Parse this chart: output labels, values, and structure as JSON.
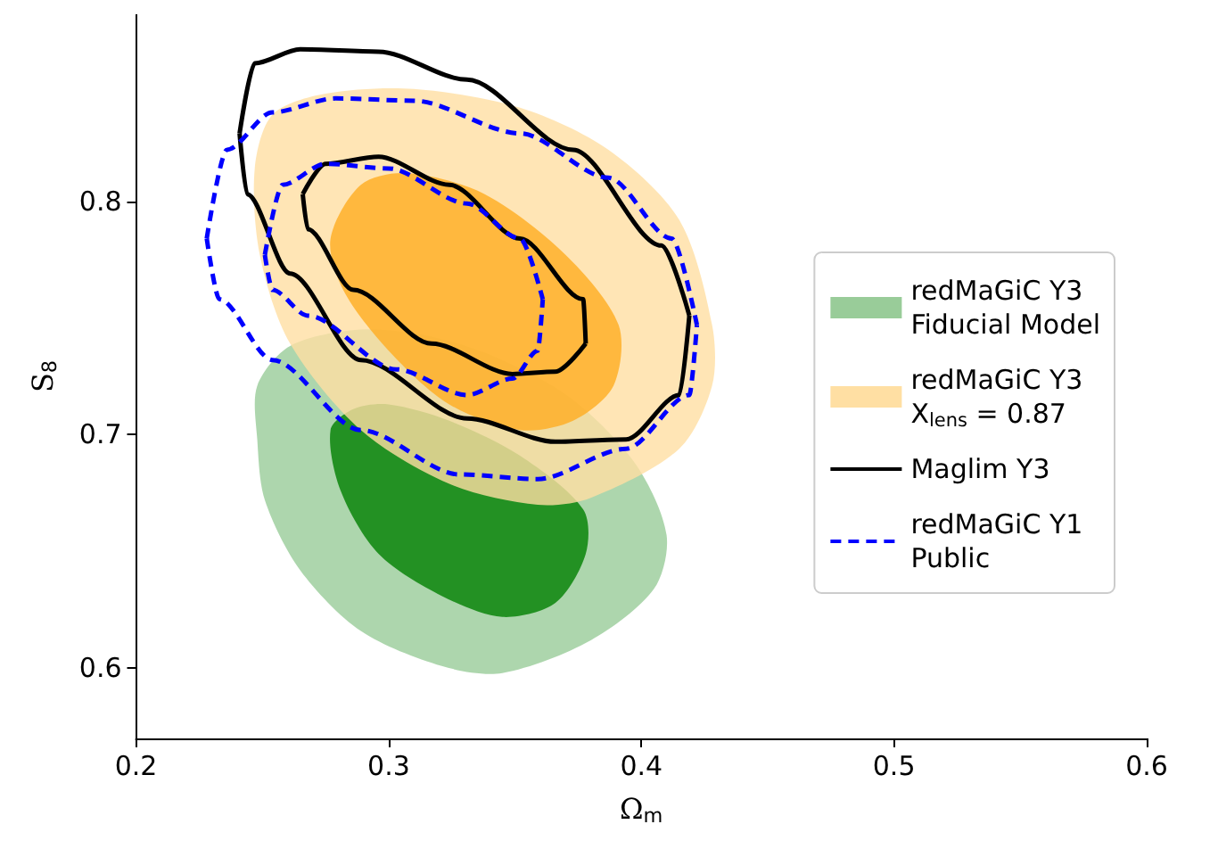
{
  "chart_data": {
    "type": "line",
    "xlabel": "Ω$_{m}$",
    "ylabel": "S$_{8}$",
    "xlim": [
      0.2,
      0.6
    ],
    "xticks": [
      0.2,
      0.3,
      0.4,
      0.5,
      0.6
    ],
    "ylim": [
      0.57,
      0.88
    ],
    "yticks": [
      0.6,
      0.7,
      0.8
    ],
    "grid": false,
    "legend": "right",
    "series": [
      {
        "type": "area",
        "name": "redMaGiC Y3\nFiducial Model",
        "color": "#99cc99",
        "x": [
          0.248,
          0.261,
          0.289,
          0.317,
          0.345,
          0.373,
          0.398,
          0.41,
          0.405,
          0.38,
          0.345,
          0.321,
          0.289,
          0.265,
          0.251,
          0.248
        ],
        "values": [
          0.721,
          0.738,
          0.745,
          0.742,
          0.732,
          0.715,
          0.687,
          0.657,
          0.634,
          0.612,
          0.598,
          0.601,
          0.616,
          0.642,
          0.672,
          0.698
        ]
      },
      {
        "type": "area",
        "color": "#008000",
        "x": [
          0.277,
          0.286,
          0.3,
          0.324,
          0.352,
          0.377,
          0.378,
          0.366,
          0.345,
          0.321,
          0.296,
          0.281
        ],
        "values": [
          0.702,
          0.711,
          0.713,
          0.706,
          0.691,
          0.668,
          0.649,
          0.628,
          0.622,
          0.631,
          0.649,
          0.676
        ]
      },
      {
        "type": "area",
        "name": "redMaGiC Y3\nX$_{lens}$ = 0.87",
        "color": "#ffdfa3",
        "x": [
          0.247,
          0.254,
          0.275,
          0.31,
          0.352,
          0.387,
          0.415,
          0.428,
          0.428,
          0.415,
          0.38,
          0.359,
          0.324,
          0.289,
          0.261,
          0.249
        ],
        "values": [
          0.814,
          0.837,
          0.846,
          0.848,
          0.84,
          0.822,
          0.792,
          0.747,
          0.721,
          0.694,
          0.673,
          0.67,
          0.679,
          0.702,
          0.739,
          0.777
        ]
      },
      {
        "type": "area",
        "color": "#ffad20",
        "x": [
          0.277,
          0.289,
          0.307,
          0.338,
          0.37,
          0.391,
          0.389,
          0.373,
          0.352,
          0.324,
          0.3,
          0.282
        ],
        "values": [
          0.784,
          0.807,
          0.812,
          0.803,
          0.777,
          0.747,
          0.721,
          0.706,
          0.702,
          0.713,
          0.736,
          0.762
        ]
      },
      {
        "name": "Maglim Y3",
        "color": "#000000",
        "line_style": "solid",
        "x": [
          0.241,
          0.247,
          0.265,
          0.296,
          0.331,
          0.373,
          0.408,
          0.419
        ],
        "values": [
          0.829,
          0.859,
          0.865,
          0.864,
          0.852,
          0.822,
          0.781,
          0.751
        ]
      },
      {
        "color": "#000000",
        "line_style": "solid",
        "x": [
          0.241,
          0.244,
          0.261,
          0.289,
          0.331,
          0.366,
          0.394,
          0.415,
          0.419
        ],
        "values": [
          0.829,
          0.803,
          0.769,
          0.732,
          0.707,
          0.697,
          0.698,
          0.717,
          0.751
        ]
      },
      {
        "color": "#000000",
        "line_style": "solid",
        "x": [
          0.266,
          0.275,
          0.296,
          0.324,
          0.352,
          0.377,
          0.378
        ],
        "values": [
          0.803,
          0.816,
          0.819,
          0.807,
          0.784,
          0.758,
          0.739
        ]
      },
      {
        "color": "#000000",
        "line_style": "solid",
        "x": [
          0.266,
          0.268,
          0.286,
          0.317,
          0.349,
          0.366,
          0.378
        ],
        "values": [
          0.803,
          0.788,
          0.762,
          0.739,
          0.726,
          0.727,
          0.739
        ]
      },
      {
        "name": "redMaGiC Y1\nPublic",
        "color": "#0000ff",
        "line_style": "dashed",
        "x": [
          0.228,
          0.236,
          0.254,
          0.279,
          0.31,
          0.352,
          0.387,
          0.412,
          0.422
        ],
        "values": [
          0.784,
          0.822,
          0.838,
          0.844,
          0.843,
          0.829,
          0.81,
          0.784,
          0.747
        ]
      },
      {
        "color": "#0000ff",
        "line_style": "dashed",
        "x": [
          0.228,
          0.233,
          0.254,
          0.289,
          0.328,
          0.359,
          0.394,
          0.419,
          0.422
        ],
        "values": [
          0.784,
          0.758,
          0.732,
          0.702,
          0.683,
          0.681,
          0.694,
          0.717,
          0.747
        ]
      },
      {
        "color": "#0000ff",
        "line_style": "dashed",
        "x": [
          0.251,
          0.258,
          0.275,
          0.3,
          0.331,
          0.352,
          0.361
        ],
        "values": [
          0.777,
          0.807,
          0.816,
          0.814,
          0.799,
          0.784,
          0.758
        ]
      },
      {
        "color": "#0000ff",
        "line_style": "dashed",
        "x": [
          0.251,
          0.254,
          0.268,
          0.303,
          0.331,
          0.349,
          0.359,
          0.361
        ],
        "values": [
          0.777,
          0.762,
          0.751,
          0.728,
          0.717,
          0.724,
          0.736,
          0.758
        ]
      }
    ]
  }
}
